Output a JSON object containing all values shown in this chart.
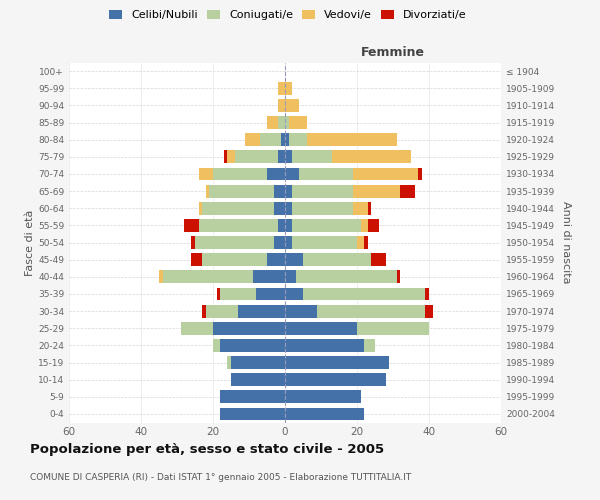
{
  "age_groups": [
    "0-4",
    "5-9",
    "10-14",
    "15-19",
    "20-24",
    "25-29",
    "30-34",
    "35-39",
    "40-44",
    "45-49",
    "50-54",
    "55-59",
    "60-64",
    "65-69",
    "70-74",
    "75-79",
    "80-84",
    "85-89",
    "90-94",
    "95-99",
    "100+"
  ],
  "birth_years": [
    "2000-2004",
    "1995-1999",
    "1990-1994",
    "1985-1989",
    "1980-1984",
    "1975-1979",
    "1970-1974",
    "1965-1969",
    "1960-1964",
    "1955-1959",
    "1950-1954",
    "1945-1949",
    "1940-1944",
    "1935-1939",
    "1930-1934",
    "1925-1929",
    "1920-1924",
    "1915-1919",
    "1910-1914",
    "1905-1909",
    "≤ 1904"
  ],
  "colors": {
    "celibi": "#4472a8",
    "coniugati": "#b8cfa0",
    "vedovi": "#f0c060",
    "divorziati": "#cc1100"
  },
  "males": {
    "celibi": [
      18,
      18,
      15,
      15,
      18,
      20,
      13,
      8,
      9,
      5,
      3,
      2,
      3,
      3,
      5,
      2,
      1,
      0,
      0,
      0,
      0
    ],
    "coniugati": [
      0,
      0,
      0,
      1,
      2,
      9,
      9,
      10,
      25,
      18,
      22,
      22,
      20,
      18,
      15,
      12,
      6,
      2,
      0,
      0,
      0
    ],
    "vedovi": [
      0,
      0,
      0,
      0,
      0,
      0,
      0,
      0,
      1,
      0,
      0,
      0,
      1,
      1,
      4,
      2,
      4,
      3,
      2,
      2,
      0
    ],
    "divorziati": [
      0,
      0,
      0,
      0,
      0,
      0,
      1,
      1,
      0,
      3,
      1,
      4,
      0,
      0,
      0,
      1,
      0,
      0,
      0,
      0,
      0
    ]
  },
  "females": {
    "celibi": [
      22,
      21,
      28,
      29,
      22,
      20,
      9,
      5,
      3,
      5,
      2,
      2,
      2,
      2,
      4,
      2,
      1,
      0,
      0,
      0,
      0
    ],
    "coniugati": [
      0,
      0,
      0,
      0,
      3,
      20,
      30,
      34,
      28,
      19,
      18,
      19,
      17,
      17,
      15,
      11,
      5,
      1,
      0,
      0,
      0
    ],
    "vedovi": [
      0,
      0,
      0,
      0,
      0,
      0,
      0,
      0,
      0,
      0,
      2,
      2,
      4,
      13,
      18,
      22,
      25,
      5,
      4,
      2,
      0
    ],
    "divorziati": [
      0,
      0,
      0,
      0,
      0,
      0,
      2,
      1,
      1,
      4,
      1,
      3,
      1,
      4,
      1,
      0,
      0,
      0,
      0,
      0,
      0
    ]
  },
  "xlim": 60,
  "title": "Popolazione per età, sesso e stato civile - 2005",
  "subtitle": "COMUNE DI CASPERIA (RI) - Dati ISTAT 1° gennaio 2005 - Elaborazione TUTTITALIA.IT",
  "xlabel_right": "Femmine",
  "ylabel_left": "Fasce di età",
  "ylabel_right": "Anni di nascita",
  "legend_labels": [
    "Celibi/Nubili",
    "Coniugati/e",
    "Vedovi/e",
    "Divorziati/e"
  ],
  "background_color": "#f5f5f5",
  "plot_background": "#ffffff",
  "grid_color": "#cccccc",
  "bar_height": 0.75
}
